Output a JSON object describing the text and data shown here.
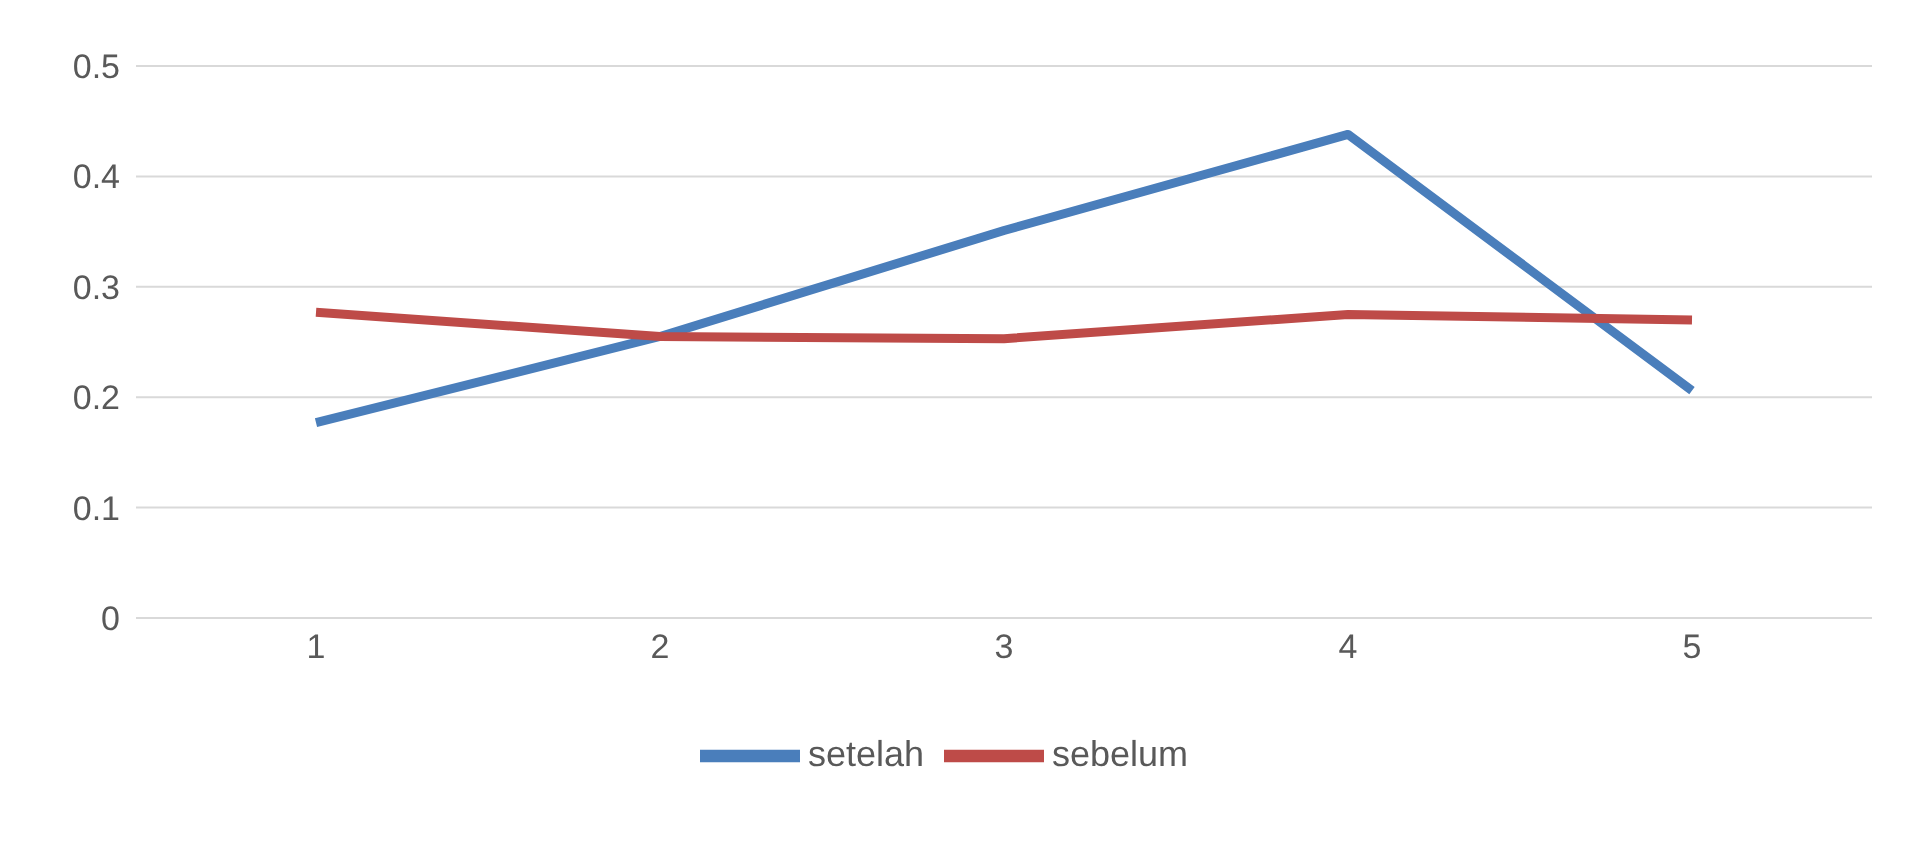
{
  "chart_data": {
    "type": "line",
    "categories": [
      "1",
      "2",
      "3",
      "4",
      "5"
    ],
    "series": [
      {
        "name": "setelah",
        "color": "#4a7ebb",
        "values": [
          0.177,
          0.255,
          0.351,
          0.438,
          0.206
        ]
      },
      {
        "name": "sebelum",
        "color": "#be4b48",
        "values": [
          0.277,
          0.255,
          0.253,
          0.275,
          0.27
        ]
      }
    ],
    "ylim": [
      0,
      0.5
    ],
    "yticks": [
      0,
      0.1,
      0.2,
      0.3,
      0.4,
      0.5
    ],
    "grid": "y",
    "legend": "bottom",
    "marker": "none",
    "line_style": "solid"
  }
}
